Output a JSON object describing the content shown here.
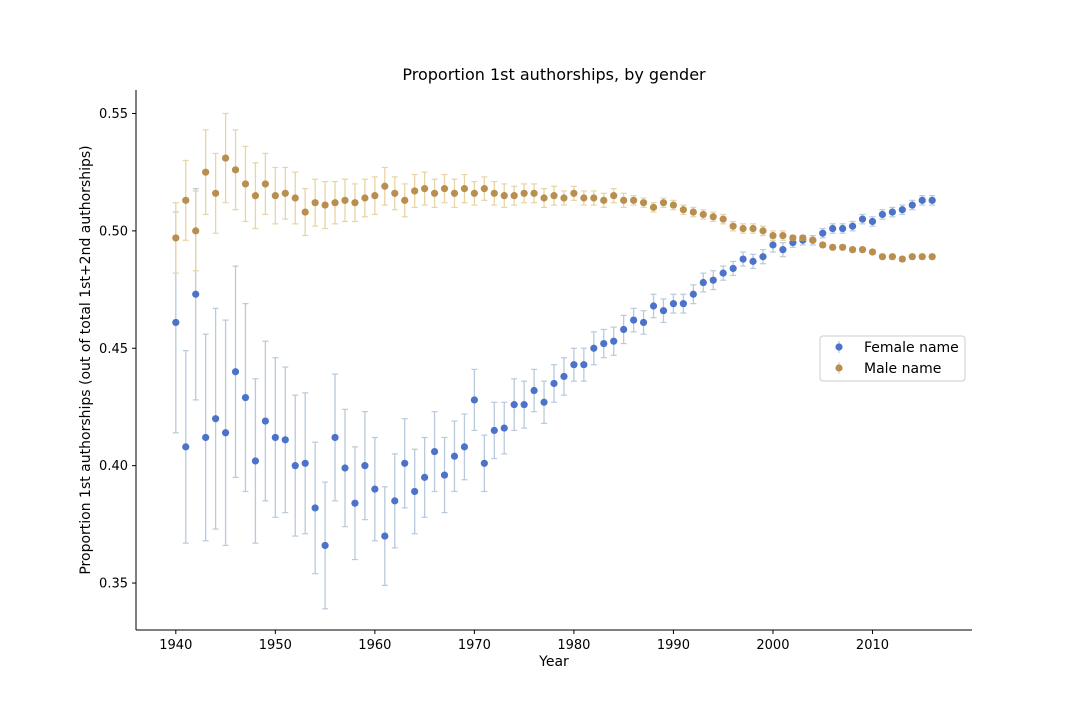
{
  "chart_data": {
    "type": "scatter",
    "title": "Proportion 1st authorships, by gender",
    "xlabel": "Year",
    "ylabel": "Proportion 1st authorships (out of total 1st+2nd authorships)",
    "xlim": [
      1936,
      2020
    ],
    "ylim": [
      0.33,
      0.56
    ],
    "xticks": [
      1940,
      1950,
      1960,
      1970,
      1980,
      1990,
      2000,
      2010
    ],
    "yticks": [
      0.35,
      0.4,
      0.45,
      0.5,
      0.55
    ],
    "grid": false,
    "legend_position": "center-right",
    "x": [
      1940,
      1941,
      1942,
      1943,
      1944,
      1945,
      1946,
      1947,
      1948,
      1949,
      1950,
      1951,
      1952,
      1953,
      1954,
      1955,
      1956,
      1957,
      1958,
      1959,
      1960,
      1961,
      1962,
      1963,
      1964,
      1965,
      1966,
      1967,
      1968,
      1969,
      1970,
      1971,
      1972,
      1973,
      1974,
      1975,
      1976,
      1977,
      1978,
      1979,
      1980,
      1981,
      1982,
      1983,
      1984,
      1985,
      1986,
      1987,
      1988,
      1989,
      1990,
      1991,
      1992,
      1993,
      1994,
      1995,
      1996,
      1997,
      1998,
      1999,
      2000,
      2001,
      2002,
      2003,
      2004,
      2005,
      2006,
      2007,
      2008,
      2009,
      2010,
      2011,
      2012,
      2013,
      2014,
      2015,
      2016
    ],
    "series": [
      {
        "name": "Female name",
        "color": "#4c72c9",
        "error_color": "#b8cadb",
        "values": [
          0.461,
          0.408,
          0.473,
          0.412,
          0.42,
          0.414,
          0.44,
          0.429,
          0.402,
          0.419,
          0.412,
          0.411,
          0.4,
          0.401,
          0.382,
          0.366,
          0.412,
          0.399,
          0.384,
          0.4,
          0.39,
          0.37,
          0.385,
          0.401,
          0.389,
          0.395,
          0.406,
          0.396,
          0.404,
          0.408,
          0.428,
          0.401,
          0.415,
          0.416,
          0.426,
          0.426,
          0.432,
          0.427,
          0.435,
          0.438,
          0.443,
          0.443,
          0.45,
          0.452,
          0.453,
          0.458,
          0.462,
          0.461,
          0.468,
          0.466,
          0.469,
          0.469,
          0.473,
          0.478,
          0.479,
          0.482,
          0.484,
          0.488,
          0.487,
          0.489,
          0.494,
          0.492,
          0.495,
          0.496,
          0.496,
          0.499,
          0.501,
          0.501,
          0.502,
          0.505,
          0.504,
          0.507,
          0.508,
          0.509,
          0.511,
          0.513,
          0.513
        ],
        "errors": [
          0.047,
          0.041,
          0.045,
          0.044,
          0.047,
          0.048,
          0.045,
          0.04,
          0.035,
          0.034,
          0.034,
          0.031,
          0.03,
          0.03,
          0.028,
          0.027,
          0.027,
          0.025,
          0.024,
          0.023,
          0.022,
          0.021,
          0.02,
          0.019,
          0.018,
          0.017,
          0.017,
          0.016,
          0.015,
          0.014,
          0.013,
          0.012,
          0.012,
          0.011,
          0.011,
          0.01,
          0.009,
          0.009,
          0.008,
          0.008,
          0.007,
          0.007,
          0.007,
          0.006,
          0.006,
          0.006,
          0.005,
          0.005,
          0.005,
          0.005,
          0.004,
          0.004,
          0.004,
          0.004,
          0.004,
          0.003,
          0.003,
          0.003,
          0.003,
          0.003,
          0.003,
          0.003,
          0.002,
          0.002,
          0.002,
          0.002,
          0.002,
          0.002,
          0.002,
          0.002,
          0.002,
          0.002,
          0.002,
          0.002,
          0.002,
          0.002,
          0.002
        ]
      },
      {
        "name": "Male name",
        "color": "#b88f4e",
        "error_color": "#e8d4a4",
        "values": [
          0.497,
          0.513,
          0.5,
          0.525,
          0.516,
          0.531,
          0.526,
          0.52,
          0.515,
          0.52,
          0.515,
          0.516,
          0.514,
          0.508,
          0.512,
          0.511,
          0.512,
          0.513,
          0.512,
          0.514,
          0.515,
          0.519,
          0.516,
          0.513,
          0.517,
          0.518,
          0.516,
          0.518,
          0.516,
          0.518,
          0.516,
          0.518,
          0.516,
          0.515,
          0.515,
          0.516,
          0.516,
          0.514,
          0.515,
          0.514,
          0.516,
          0.514,
          0.514,
          0.513,
          0.515,
          0.513,
          0.513,
          0.512,
          0.51,
          0.512,
          0.511,
          0.509,
          0.508,
          0.507,
          0.506,
          0.505,
          0.502,
          0.501,
          0.501,
          0.5,
          0.498,
          0.498,
          0.497,
          0.497,
          0.496,
          0.494,
          0.493,
          0.493,
          0.492,
          0.492,
          0.491,
          0.489,
          0.489,
          0.488,
          0.489,
          0.489,
          0.489
        ],
        "errors": [
          0.015,
          0.017,
          0.017,
          0.018,
          0.017,
          0.019,
          0.017,
          0.016,
          0.014,
          0.013,
          0.012,
          0.011,
          0.011,
          0.01,
          0.01,
          0.01,
          0.009,
          0.009,
          0.008,
          0.008,
          0.008,
          0.008,
          0.007,
          0.007,
          0.007,
          0.007,
          0.006,
          0.006,
          0.006,
          0.006,
          0.005,
          0.005,
          0.005,
          0.005,
          0.004,
          0.004,
          0.004,
          0.004,
          0.004,
          0.003,
          0.003,
          0.003,
          0.003,
          0.003,
          0.003,
          0.003,
          0.002,
          0.002,
          0.002,
          0.002,
          0.002,
          0.002,
          0.002,
          0.002,
          0.002,
          0.002,
          0.002,
          0.002,
          0.002,
          0.002,
          0.002,
          0.002,
          0.001,
          0.001,
          0.001,
          0.001,
          0.001,
          0.001,
          0.001,
          0.001,
          0.001,
          0.001,
          0.001,
          0.001,
          0.001,
          0.001,
          0.001
        ]
      }
    ]
  }
}
